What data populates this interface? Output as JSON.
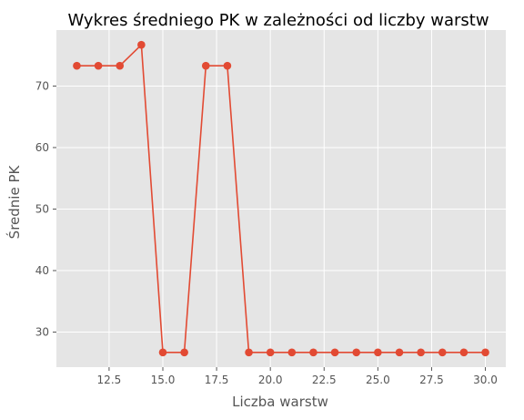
{
  "chart_data": {
    "type": "line",
    "title": "Wykres średniego PK w zależności od liczby warstw",
    "xlabel": "Liczba warstw",
    "ylabel": "Średnie PK",
    "xlim": [
      10.05,
      30.95
    ],
    "ylim": [
      24.3,
      79.1
    ],
    "xticks": [
      12.5,
      15.0,
      17.5,
      20.0,
      22.5,
      25.0,
      27.5,
      30.0
    ],
    "xtick_labels": [
      "12.5",
      "15.0",
      "17.5",
      "20.0",
      "22.5",
      "25.0",
      "27.5",
      "30.0"
    ],
    "yticks": [
      30,
      40,
      50,
      60,
      70
    ],
    "ytick_labels": [
      "30",
      "40",
      "50",
      "60",
      "70"
    ],
    "grid": true,
    "style": "ggplot",
    "series": [
      {
        "color": "#E24A33",
        "marker": "circle",
        "x": [
          11,
          12,
          13,
          14,
          15,
          16,
          17,
          18,
          19,
          20,
          21,
          22,
          23,
          24,
          25,
          26,
          27,
          28,
          29,
          30
        ],
        "y": [
          73.3,
          73.3,
          73.3,
          76.7,
          26.7,
          26.7,
          73.3,
          73.3,
          26.7,
          26.7,
          26.7,
          26.7,
          26.7,
          26.7,
          26.7,
          26.7,
          26.7,
          26.7,
          26.7,
          26.7
        ]
      }
    ]
  }
}
